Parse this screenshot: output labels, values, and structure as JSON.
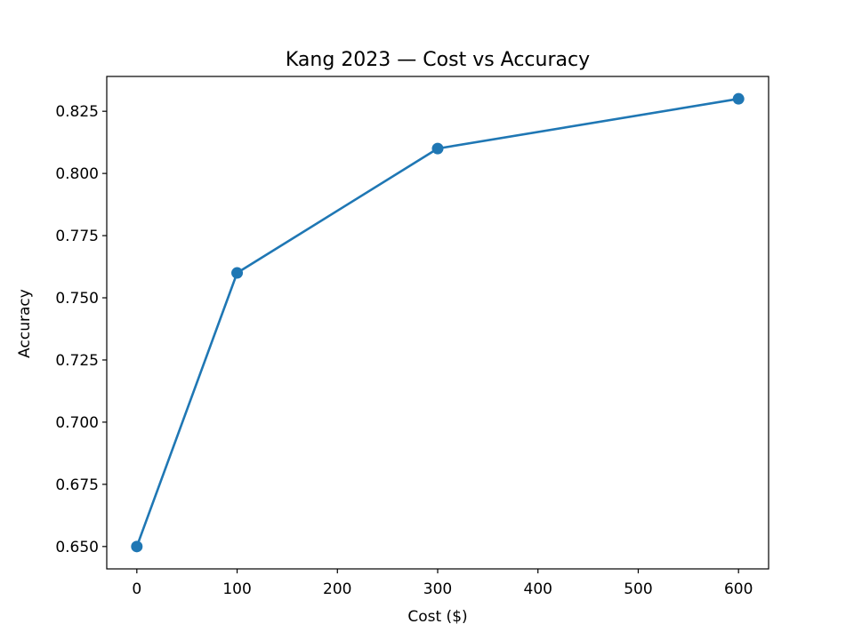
{
  "chart_data": {
    "type": "line",
    "title": "Kang 2023 — Cost vs Accuracy",
    "xlabel": "Cost ($)",
    "ylabel": "Accuracy",
    "x": [
      0,
      100,
      300,
      600
    ],
    "series": [
      {
        "values": [
          0.65,
          0.76,
          0.81,
          0.83
        ],
        "color": "#1f77b4",
        "marker": "circle"
      }
    ],
    "xlim": [
      -30,
      630
    ],
    "ylim": [
      0.641,
      0.839
    ],
    "x_ticks": [
      0,
      100,
      200,
      300,
      400,
      500,
      600
    ],
    "x_tick_labels": [
      "0",
      "100",
      "200",
      "300",
      "400",
      "500",
      "600"
    ],
    "y_ticks": [
      0.65,
      0.675,
      0.7,
      0.725,
      0.75,
      0.775,
      0.8,
      0.825
    ],
    "y_tick_labels": [
      "0.650",
      "0.675",
      "0.700",
      "0.725",
      "0.750",
      "0.775",
      "0.800",
      "0.825"
    ],
    "grid": false,
    "legend": "none"
  }
}
